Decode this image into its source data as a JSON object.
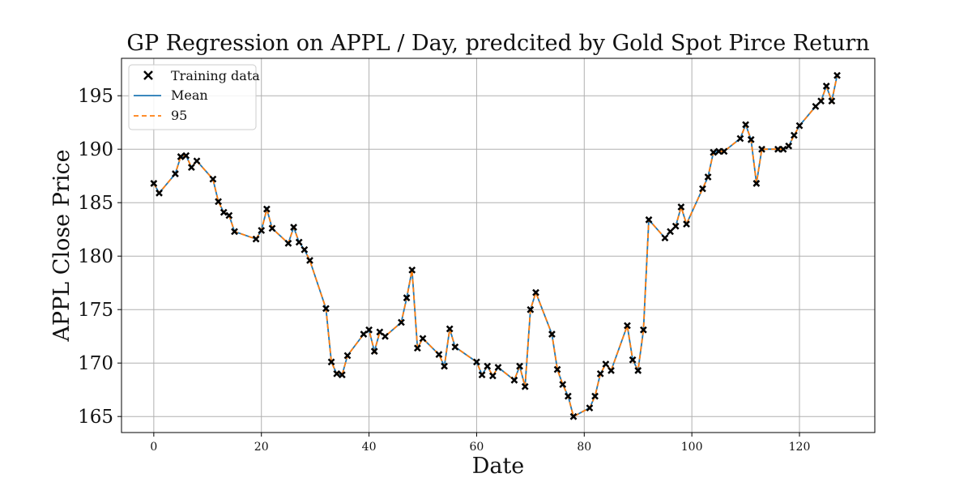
{
  "chart_data": {
    "type": "line",
    "title": "GP Regression on APPL / Day, predcited by Gold Spot Pirce Return",
    "xlabel": "Date",
    "ylabel": "APPL Close Price",
    "xlim": [
      -6,
      134
    ],
    "ylim": [
      163.5,
      198.5
    ],
    "xticks": [
      0,
      20,
      40,
      60,
      80,
      100,
      120
    ],
    "yticks": [
      165,
      170,
      175,
      180,
      185,
      190,
      195
    ],
    "grid": true,
    "legend_position": "top-left",
    "colors": {
      "mean": "#1f77b4",
      "ci": "#ff7f0e",
      "training": "#000000"
    },
    "legend": [
      "Training data",
      "Mean",
      "95"
    ],
    "series": [
      {
        "name": "Training data",
        "x": [
          0,
          1,
          4,
          5,
          6,
          7,
          8,
          11,
          12,
          13,
          14,
          15,
          19,
          20,
          21,
          22,
          25,
          26,
          27,
          28,
          29,
          32,
          33,
          34,
          35,
          36,
          39,
          40,
          41,
          42,
          43,
          46,
          47,
          48,
          49,
          50,
          53,
          54,
          55,
          56,
          60,
          61,
          62,
          63,
          64,
          67,
          68,
          69,
          70,
          71,
          74,
          75,
          76,
          77,
          78,
          81,
          82,
          83,
          84,
          85,
          88,
          89,
          90,
          91,
          92,
          95,
          96,
          97,
          98,
          99,
          102,
          103,
          104,
          105,
          106,
          109,
          110,
          111,
          112,
          113,
          116,
          117,
          118,
          119,
          120,
          123,
          124,
          125,
          126,
          127
        ],
        "y": [
          186.8,
          185.9,
          187.7,
          189.3,
          189.4,
          188.3,
          188.9,
          187.2,
          185.1,
          184.1,
          183.8,
          182.3,
          181.6,
          182.4,
          184.4,
          182.6,
          181.2,
          182.7,
          181.3,
          180.6,
          179.6,
          175.1,
          170.1,
          169.0,
          168.9,
          170.7,
          172.7,
          173.1,
          171.1,
          172.9,
          172.5,
          173.8,
          176.1,
          178.7,
          171.4,
          172.3,
          170.8,
          169.7,
          173.2,
          171.5,
          170.1,
          168.9,
          169.7,
          168.8,
          169.6,
          168.4,
          169.7,
          167.8,
          175.0,
          176.6,
          172.7,
          169.4,
          168.0,
          166.9,
          165.0,
          165.8,
          166.9,
          169.0,
          169.9,
          169.3,
          173.5,
          170.3,
          169.3,
          173.1,
          183.4,
          181.7,
          182.3,
          182.8,
          184.6,
          183.0,
          186.3,
          187.4,
          189.7,
          189.8,
          189.8,
          191.0,
          192.3,
          190.9,
          186.8,
          190.0,
          190.0,
          190.0,
          190.3,
          191.3,
          192.2,
          194.0,
          194.5,
          195.9,
          194.5,
          196.9
        ]
      }
    ]
  }
}
